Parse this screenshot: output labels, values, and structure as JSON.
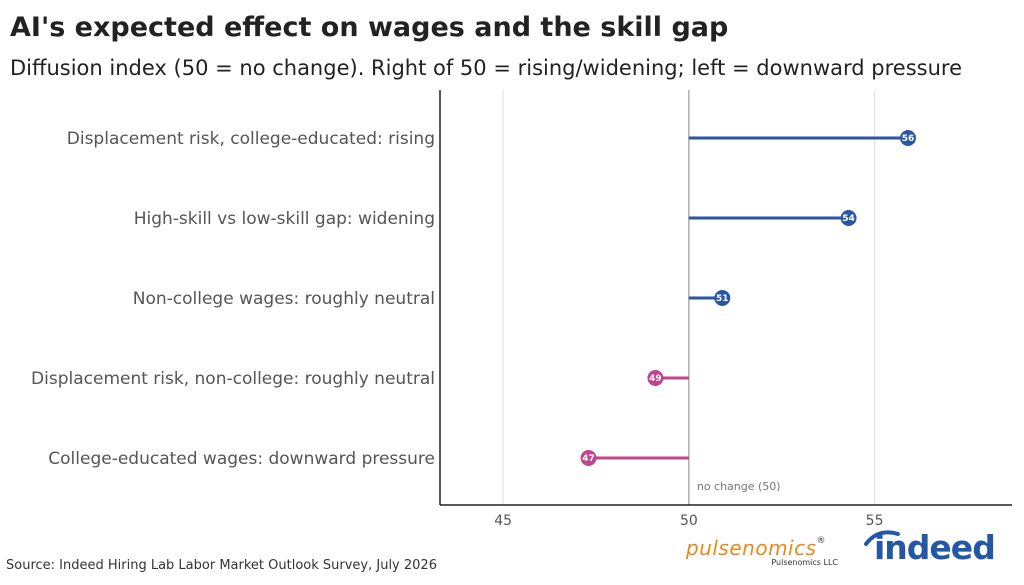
{
  "title": "AI's expected effect on wages and the skill gap",
  "subtitle": "Diffusion index (50 = no change). Right of 50 = rising/widening; left = downward pressure",
  "source": "Source: Indeed Hiring Lab Labor Market Outlook Survey, July 2026",
  "logos": {
    "pulsenomics": {
      "wordmark": "pulsenomics",
      "mark": "®",
      "tagline": "Pulsenomics LLC"
    },
    "indeed": {
      "wordmark": "indeed"
    }
  },
  "colors": {
    "positive": "#2a56a4",
    "negative": "#c2448e",
    "reference": "#999999",
    "grid": "#e0e0e0"
  },
  "chart_data": {
    "type": "lollipop",
    "title": "AI's expected effect on wages and the skill gap",
    "subtitle": "Diffusion index (50 = no change). Right of 50 = rising/widening; left = downward pressure",
    "xlabel": "",
    "ylabel": "",
    "xlim": [
      43.3,
      58.7
    ],
    "xticks": [
      45,
      50,
      55
    ],
    "baseline": 50,
    "reference_label": "no change (50)",
    "grid": true,
    "categories": [
      "Displacement risk, college-educated: rising",
      "High-skill vs low-skill gap: widening",
      "Non-college wages: roughly neutral",
      "Displacement risk, non-college: roughly neutral",
      "College-educated wages: downward pressure"
    ],
    "values": [
      55.9,
      54.3,
      50.9,
      49.1,
      47.3
    ],
    "value_labels": [
      "56",
      "54",
      "51",
      "49",
      "47"
    ]
  }
}
